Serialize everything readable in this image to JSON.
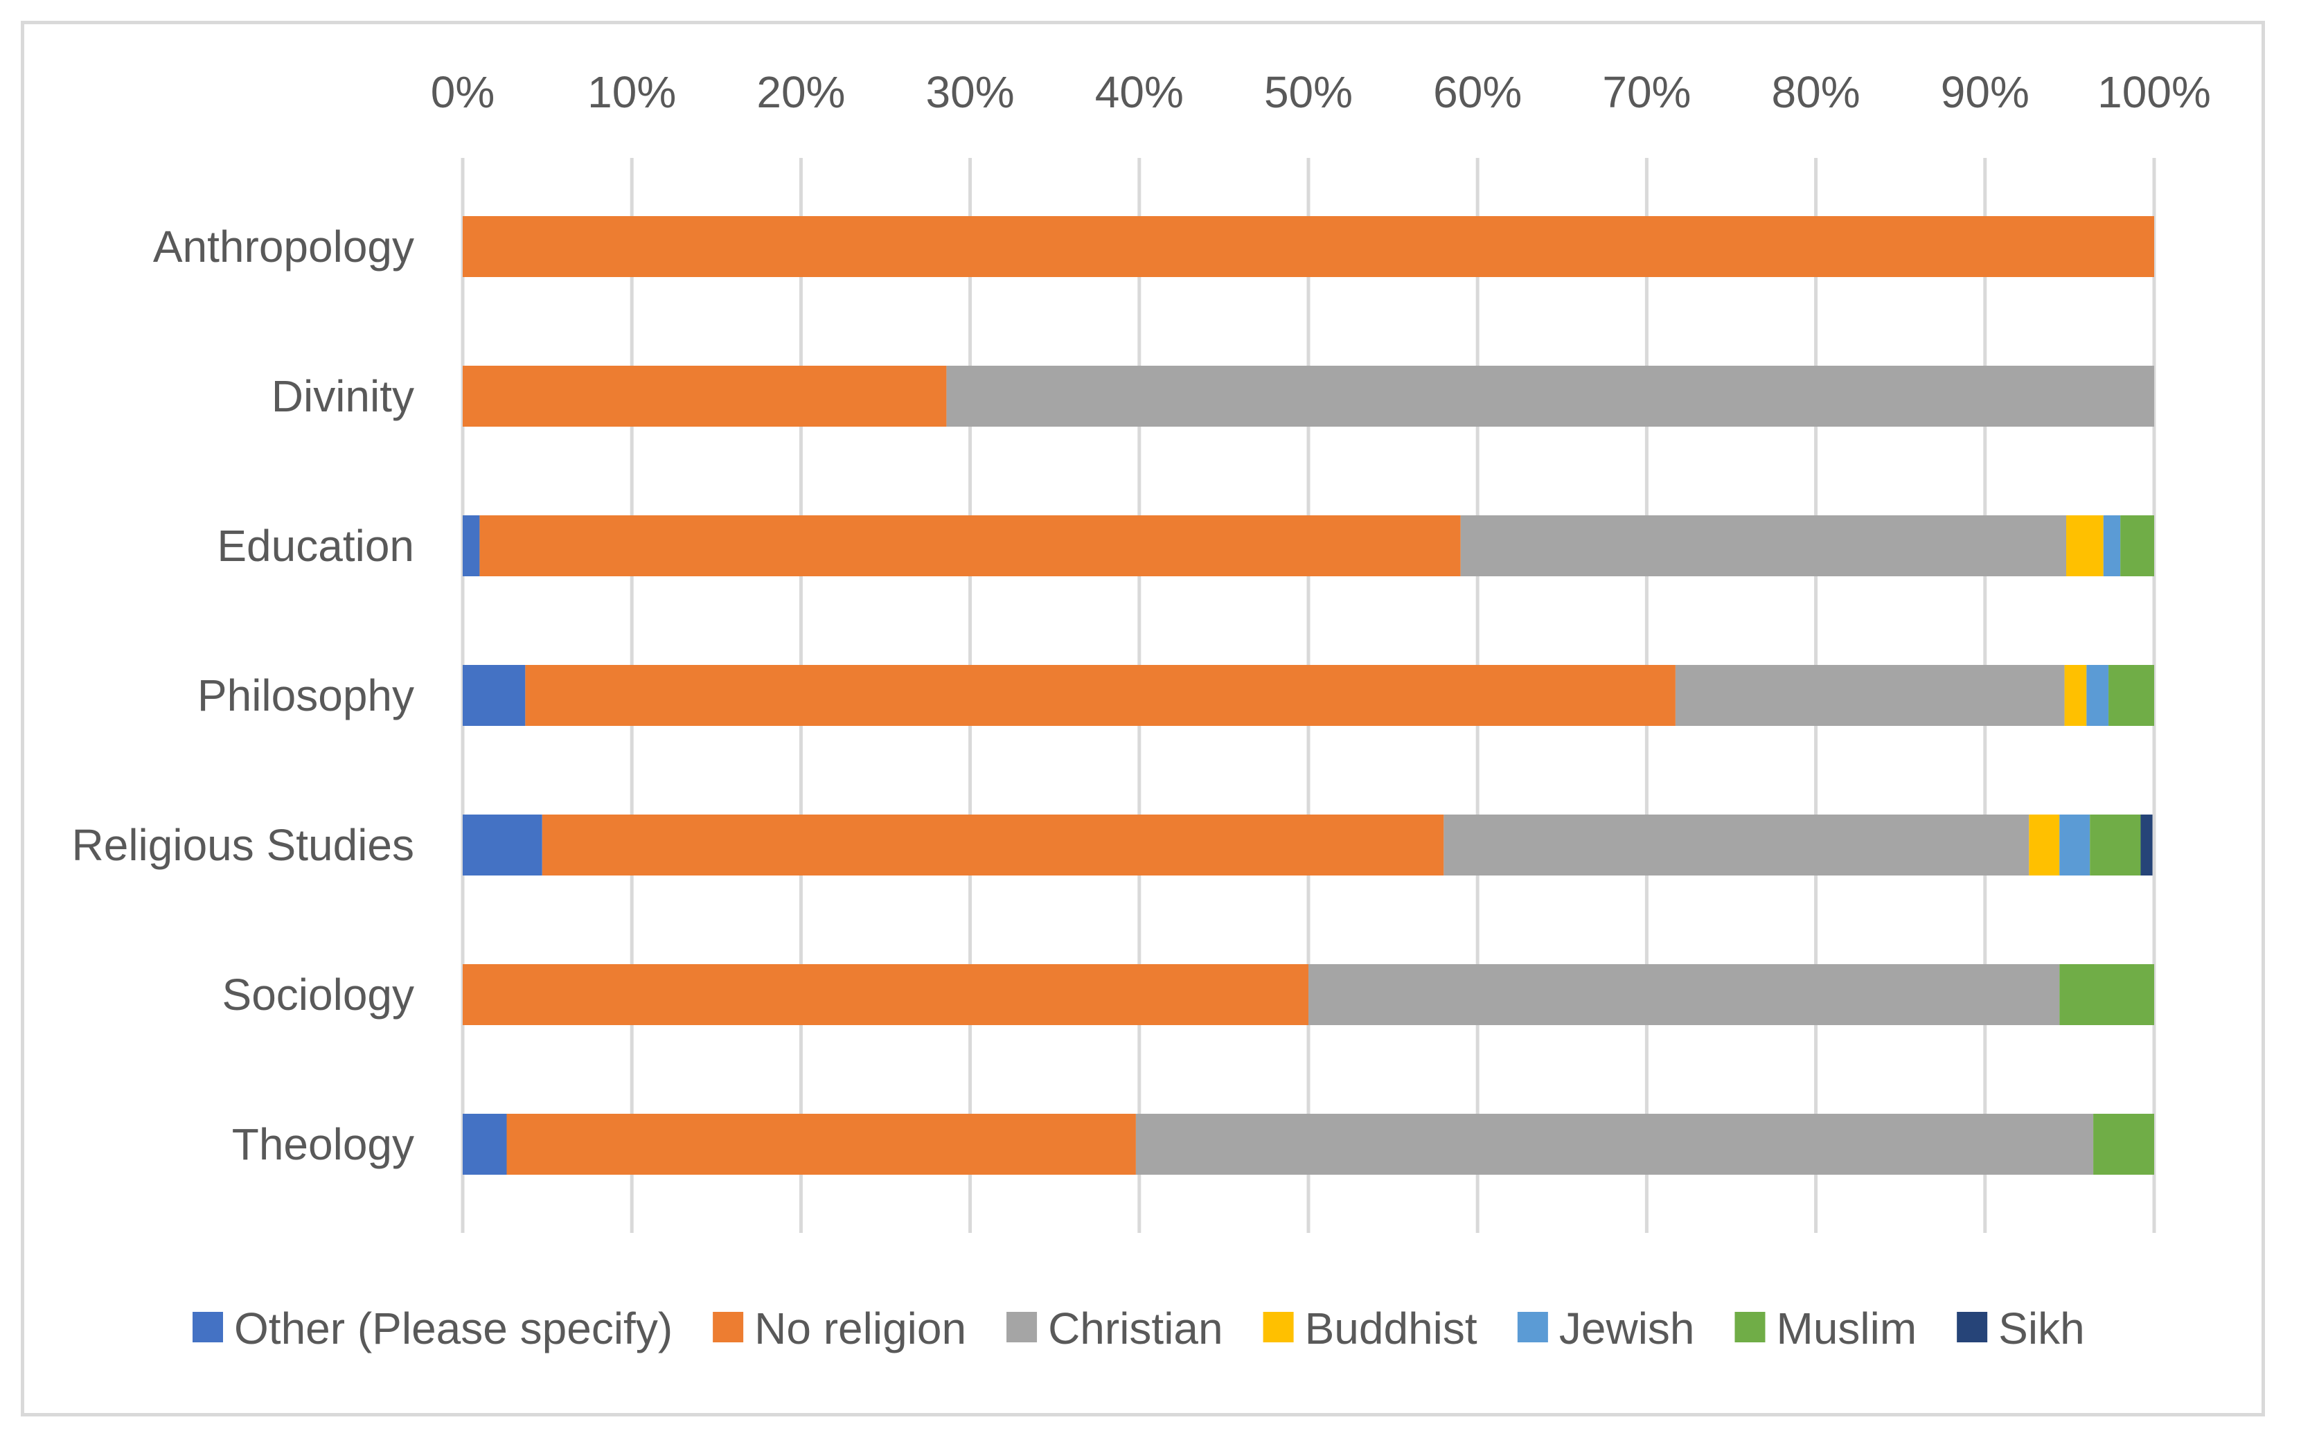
{
  "chart_data": {
    "type": "bar",
    "orientation": "horizontal",
    "stacked": "percent",
    "categories": [
      "Anthropology",
      "Divinity",
      "Education",
      "Philosophy",
      "Religious Studies",
      "Sociology",
      "Theology"
    ],
    "x_ticks": [
      "0%",
      "10%",
      "20%",
      "30%",
      "40%",
      "50%",
      "60%",
      "70%",
      "80%",
      "90%",
      "100%"
    ],
    "xlim": [
      0,
      100
    ],
    "x_axis_position": "top",
    "grid": true,
    "legend_position": "bottom",
    "series": [
      {
        "name": "Other (Please specify)",
        "color": "#4472C4",
        "values": [
          0,
          0,
          1,
          3.7,
          4.7,
          0,
          2.6
        ]
      },
      {
        "name": "No religion",
        "color": "#ED7D31",
        "values": [
          100,
          28.6,
          58,
          68,
          53.3,
          50,
          37.2
        ]
      },
      {
        "name": "Christian",
        "color": "#A5A5A5",
        "values": [
          0,
          71.4,
          35.8,
          23,
          34.6,
          44.4,
          56.6
        ]
      },
      {
        "name": "Buddhist",
        "color": "#FFC000",
        "values": [
          0,
          0,
          2.2,
          1.3,
          1.8,
          0,
          0
        ]
      },
      {
        "name": "Jewish",
        "color": "#5B9BD5",
        "values": [
          0,
          0,
          1,
          1.3,
          1.8,
          0,
          0
        ]
      },
      {
        "name": "Muslim",
        "color": "#70AD47",
        "values": [
          0,
          0,
          2,
          2.7,
          3.0,
          5.6,
          3.6
        ]
      },
      {
        "name": "Sikh",
        "color": "#264478",
        "values": [
          0,
          0,
          0,
          0,
          0.7,
          0,
          0
        ]
      }
    ]
  }
}
